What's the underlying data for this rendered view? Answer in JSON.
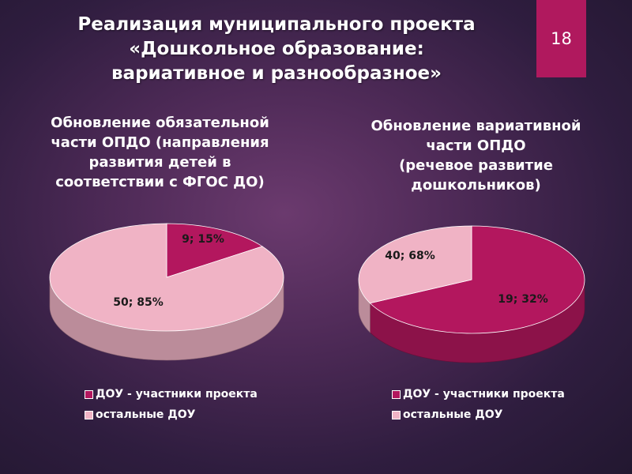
{
  "slide": {
    "title_lines": [
      "Реализация муниципального проекта",
      "«Дошкольное образование:",
      "вариативное и разнообразное»"
    ],
    "page_number": "18"
  },
  "colors": {
    "accent": "#b0195e",
    "pink": "#f0b3c5",
    "magenta": "#b3175e"
  },
  "chart_data": [
    {
      "type": "pie",
      "title_lines": [
        "Обновление обязательной",
        "части ОПДО (направления",
        "развития детей в",
        "соответствии с ФГОС ДО)"
      ],
      "categories": [
        "ДОУ - участники проекта",
        "остальные ДОУ"
      ],
      "values": [
        9,
        50
      ],
      "percents": [
        15,
        85
      ],
      "data_labels": [
        "9; 15%",
        "50; 85%"
      ],
      "colors": [
        "#b3175e",
        "#f0b3c5"
      ],
      "style": "3d",
      "legend_position": "bottom"
    },
    {
      "type": "pie",
      "title_lines": [
        "Обновление вариативной",
        "части ОПДО",
        "(речевое развитие",
        "дошкольников)"
      ],
      "categories": [
        "ДОУ - участники проекта",
        "остальные ДОУ"
      ],
      "values": [
        40,
        19
      ],
      "percents": [
        68,
        32
      ],
      "data_labels": [
        "40; 68%",
        "19; 32%"
      ],
      "colors": [
        "#b3175e",
        "#f0b3c5"
      ],
      "style": "3d",
      "legend_position": "bottom"
    }
  ]
}
